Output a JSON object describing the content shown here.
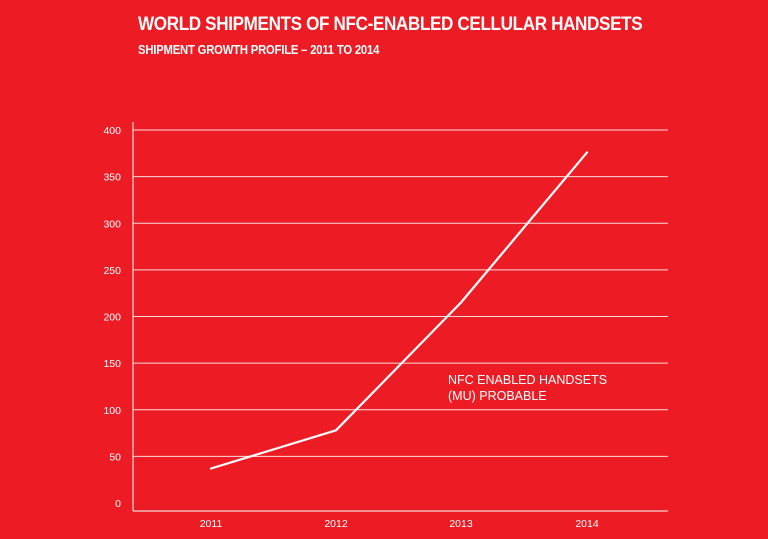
{
  "header": {
    "title": "WORLD SHIPMENTS OF NFC-ENABLED CELLULAR HANDSETS",
    "subtitle": "SHIPMENT GROWTH PROFILE – 2011 TO 2014"
  },
  "chart_data": {
    "type": "line",
    "title": "WORLD SHIPMENTS OF NFC-ENABLED CELLULAR HANDSETS",
    "subtitle": "SHIPMENT GROWTH PROFILE – 2011 TO 2014",
    "xlabel": "",
    "ylabel": "",
    "categories": [
      "2011",
      "2012",
      "2013",
      "2014"
    ],
    "series": [
      {
        "name": "NFC ENABLED HANDSETS (MU) PROBABLE",
        "values": [
          37,
          78,
          215,
          376
        ]
      }
    ],
    "ylim": [
      0,
      400
    ],
    "yticks": [
      0,
      50,
      100,
      150,
      200,
      250,
      300,
      350,
      400
    ],
    "grid": true,
    "annotation": {
      "lines": [
        "NFC ENABLED HANDSETS",
        "(MU) PROBABLE"
      ]
    },
    "colors": {
      "background": "#ed1c24",
      "line": "#ffffff",
      "grid": "#ffffff"
    }
  }
}
